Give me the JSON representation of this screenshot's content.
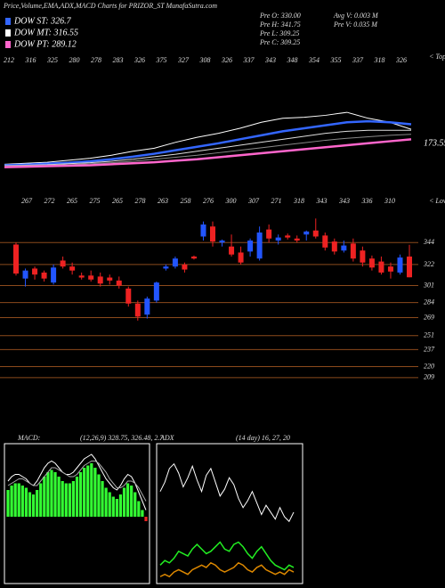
{
  "header": {
    "title": "Price,Volume,EMA,ADX,MACD Charts for PRIZOR_ST MunafaSutra.com",
    "legend": [
      {
        "label": "DOW ST: 326.7",
        "color": "#3366ff"
      },
      {
        "label": "DOW MT: 316.55",
        "color": "#ffffff"
      },
      {
        "label": "DOW PT: 289.12",
        "color": "#ff66cc"
      }
    ],
    "stats": [
      [
        "Pre  O: 330.00",
        "Avg  V: 0.003 M"
      ],
      [
        "Pre  H: 341.75",
        "Pre   V: 0.035 M"
      ],
      [
        "Pre  L: 309.25"
      ],
      [
        "Pre  C: 309.25"
      ]
    ]
  },
  "chart_data": [
    {
      "type": "line",
      "top_labels": [
        "212",
        "316",
        "325",
        "280",
        "278",
        "283",
        "326",
        "375",
        "327",
        "308",
        "326",
        "337",
        "343",
        "348",
        "354",
        "355",
        "337",
        "318",
        "326"
      ],
      "top_note": "< Top",
      "annotation": "173.55",
      "ylim": [
        150,
        400
      ],
      "series": [
        {
          "color": "#ffffff",
          "width": 1,
          "values": [
            178,
            180,
            182,
            186,
            190,
            196,
            204,
            210,
            222,
            232,
            240,
            250,
            262,
            270,
            272,
            276,
            282,
            270,
            262,
            248
          ]
        },
        {
          "color": "#3366ff",
          "width": 2.5,
          "values": [
            176,
            177,
            179,
            181,
            184,
            188,
            193,
            199,
            206,
            213,
            220,
            228,
            236,
            244,
            250,
            256,
            262,
            264,
            262,
            258
          ]
        },
        {
          "color": "#dddddd",
          "width": 1,
          "values": [
            175,
            176,
            177,
            179,
            181,
            184,
            188,
            193,
            198,
            204,
            210,
            216,
            222,
            228,
            234,
            240,
            244,
            246,
            246,
            246
          ]
        },
        {
          "color": "#888888",
          "width": 1,
          "values": [
            174,
            175,
            176,
            177,
            179,
            181,
            184,
            188,
            192,
            196,
            201,
            206,
            211,
            216,
            221,
            226,
            230,
            233,
            236,
            238
          ]
        },
        {
          "color": "#ff66cc",
          "width": 2.5,
          "values": [
            172,
            173,
            174,
            175,
            176,
            178,
            180,
            182,
            185,
            188,
            192,
            196,
            200,
            204,
            208,
            212,
            216,
            220,
            224,
            228
          ]
        }
      ]
    },
    {
      "type": "candlestick",
      "bottom_labels": [
        "267",
        "272",
        "265",
        "275",
        "265",
        "278",
        "263",
        "258",
        "276",
        "300",
        "307",
        "271",
        "318",
        "343",
        "343",
        "336",
        "310"
      ],
      "bottom_note": "< Lowe",
      "ylim": [
        200,
        370
      ],
      "yticks": [
        344,
        322,
        301,
        284,
        269,
        251,
        237,
        220,
        209
      ],
      "grid_color": "#8b4a1c",
      "up_color": "#2255ff",
      "down_color": "#ee2222",
      "open": [
        342,
        308,
        318,
        314,
        304,
        326,
        320,
        311,
        311,
        310,
        309,
        306,
        298,
        283,
        272,
        286,
        318,
        320,
        322,
        330,
        350,
        360,
        344,
        340,
        334,
        335,
        328,
        357,
        346,
        351,
        348,
        352,
        356,
        351,
        345,
        336,
        343,
        336,
        328,
        325,
        320,
        314,
        330
      ],
      "high": [
        344,
        318,
        320,
        316,
        322,
        330,
        324,
        314,
        316,
        314,
        312,
        310,
        300,
        286,
        290,
        305,
        322,
        330,
        324,
        331,
        365,
        365,
        347,
        352,
        340,
        348,
        360,
        362,
        352,
        353,
        351,
        356,
        368,
        354,
        348,
        346,
        348,
        340,
        331,
        330,
        324,
        332,
        341.75
      ],
      "low": [
        311,
        300,
        307,
        305,
        302,
        318,
        312,
        307,
        305,
        300,
        302,
        298,
        280,
        266,
        268,
        284,
        316,
        318,
        314,
        327,
        346,
        340,
        340,
        330,
        322,
        330,
        326,
        344,
        342,
        347,
        344,
        346,
        348,
        336,
        332,
        334,
        325,
        320,
        316,
        312,
        308,
        312,
        309.25
      ],
      "close": [
        313,
        316,
        312,
        308,
        319,
        320,
        316,
        309,
        307,
        303,
        306,
        301,
        283,
        270,
        288,
        304,
        320,
        328,
        317,
        328,
        362,
        345,
        346,
        332,
        324,
        346,
        354,
        348,
        349,
        349,
        346,
        355,
        350,
        339,
        335,
        341,
        328,
        324,
        319,
        314,
        315,
        329,
        309.25
      ]
    },
    {
      "type": "macd",
      "label": "MACD:",
      "params": "(12,26,9) 328.75, 326.48, 2.7",
      "ylim": [
        -30,
        30
      ],
      "bar_color": "#33ff33",
      "histogram": [
        12,
        14,
        15,
        15,
        14,
        13,
        11,
        10,
        12,
        15,
        18,
        20,
        21,
        20,
        18,
        16,
        15,
        15,
        16,
        18,
        20,
        22,
        23,
        24,
        22,
        19,
        16,
        13,
        11,
        9,
        8,
        10,
        13,
        15,
        14,
        11,
        7,
        3,
        -2
      ],
      "series": [
        {
          "color": "#ffffff",
          "values": [
            16,
            18,
            19,
            19,
            18,
            17,
            15,
            14,
            16,
            19,
            22,
            24,
            25,
            24,
            22,
            20,
            19,
            19,
            20,
            22,
            24,
            26,
            27,
            28,
            26,
            23,
            20,
            17,
            15,
            13,
            12,
            14,
            17,
            19,
            18,
            15,
            11,
            7,
            3
          ]
        },
        {
          "color": "#aaaaaa",
          "values": [
            14,
            15,
            16,
            17,
            17,
            16,
            15,
            14,
            14,
            16,
            18,
            20,
            22,
            22,
            21,
            20,
            19,
            18,
            18,
            19,
            21,
            23,
            24,
            25,
            25,
            24,
            22,
            20,
            17,
            15,
            13,
            13,
            14,
            16,
            16,
            15,
            13,
            10,
            7
          ]
        }
      ]
    },
    {
      "type": "adx",
      "label": "ADX",
      "params": "(14 day) 16, 27, 20",
      "ylim": [
        0,
        60
      ],
      "series": [
        {
          "color": "#ffffff",
          "values": [
            40,
            44,
            50,
            52,
            48,
            42,
            46,
            51,
            45,
            40,
            47,
            50,
            44,
            38,
            41,
            46,
            43,
            37,
            33,
            36,
            40,
            35,
            30,
            34,
            31,
            28,
            33,
            29,
            27,
            31
          ]
        },
        {
          "color": "#22ee22",
          "values": [
            8,
            10,
            9,
            11,
            14,
            13,
            12,
            15,
            17,
            15,
            13,
            14,
            16,
            18,
            15,
            14,
            17,
            18,
            16,
            13,
            11,
            14,
            16,
            13,
            10,
            8,
            7,
            6,
            8,
            7
          ]
        },
        {
          "color": "#dd8800",
          "values": [
            3,
            4,
            3,
            5,
            6,
            5,
            4,
            6,
            7,
            8,
            7,
            9,
            8,
            6,
            5,
            6,
            7,
            9,
            8,
            6,
            5,
            7,
            8,
            6,
            5,
            4,
            5,
            4,
            6,
            5
          ]
        }
      ]
    }
  ]
}
